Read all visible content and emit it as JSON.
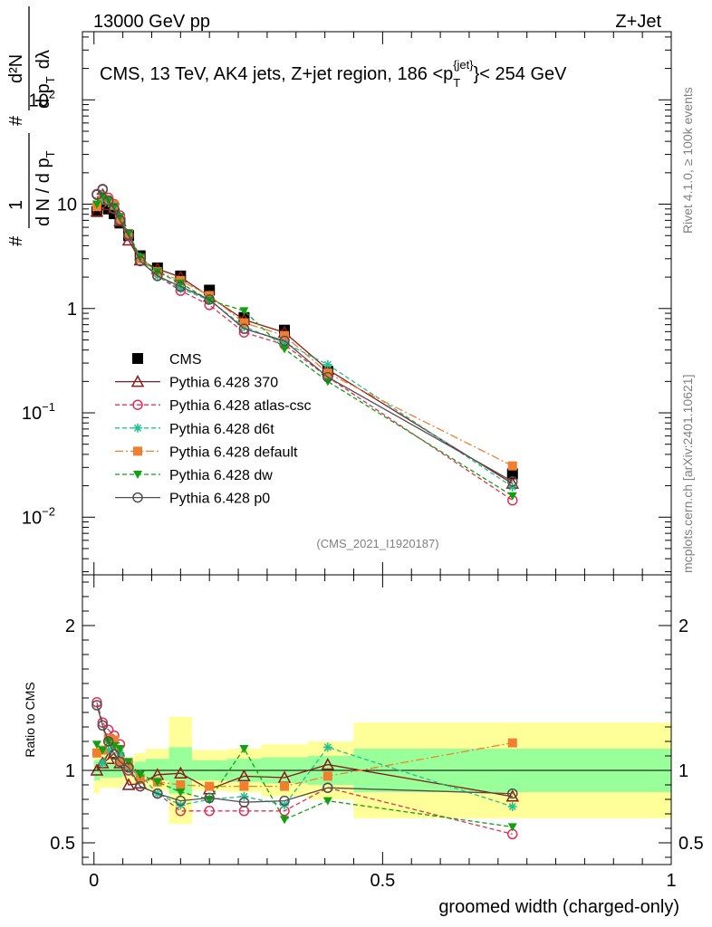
{
  "header": {
    "energy_label": "13000 GeV pp",
    "process_label": "Z+Jet"
  },
  "side_labels": {
    "rivet": "Rivet 4.1.0, ≥ 100k events",
    "mcplots": "mcplots.cern.ch [arXiv:2401.10621]"
  },
  "chart_data": [
    {
      "type": "line",
      "panel": "main",
      "title": "CMS, 13 TeV, AK4 jets, Z+jet region, 186 <p_T^{jet}> < 254 GeV",
      "title_parts": {
        "main": "CMS, 13 TeV, AK4 jets, Z+jet region, 186 <p",
        "sub": "T",
        "sup": "{jet}",
        "tail": "}< 254 GeV"
      },
      "ylabel": "1/(dN/dpT) d²N/(dpT dλ)",
      "ylabel_parts": {
        "hash": "#",
        "one": "1",
        "dN": "d N / d p",
        "dN_sub": "T",
        "d2N": "d²N",
        "dpdl": "d p",
        "dpdl_sub": "T",
        "dl": "dλ"
      },
      "yscale": "log",
      "ylim": [
        0.0028,
        450
      ],
      "xlim": [
        -0.02,
        1.0
      ],
      "yticks": [
        {
          "value": 0.01,
          "label_base": "10",
          "label_exp": "−2"
        },
        {
          "value": 0.1,
          "label_base": "10",
          "label_exp": "−1"
        },
        {
          "value": 1,
          "label_base": "1",
          "label_exp": ""
        },
        {
          "value": 10,
          "label_base": "10",
          "label_exp": ""
        },
        {
          "value": 100,
          "label_base": "10",
          "label_exp": "2"
        }
      ],
      "watermark": "(CMS_2021_I1920187)",
      "legend_position": "middle-left",
      "x": [
        0.005,
        0.015,
        0.025,
        0.035,
        0.045,
        0.06,
        0.08,
        0.11,
        0.15,
        0.2,
        0.26,
        0.33,
        0.405,
        0.725
      ],
      "series": [
        {
          "name": "CMS",
          "color": "#000000",
          "marker": "square",
          "dash": "",
          "line": false,
          "values": [
            8.5,
            10.5,
            9.0,
            8.1,
            6.6,
            5.0,
            3.2,
            2.45,
            2.05,
            1.5,
            0.82,
            0.62,
            0.25,
            0.026
          ]
        },
        {
          "name": "Pythia 6.428 370",
          "color": "#8b1a1a",
          "marker": "triangle-open",
          "dash": "",
          "line": true,
          "values": [
            8.5,
            11.0,
            9.8,
            9.2,
            6.9,
            4.5,
            2.9,
            2.4,
            2.0,
            1.3,
            0.78,
            0.59,
            0.26,
            0.021
          ]
        },
        {
          "name": "Pythia 6.428 atlas-csc",
          "color": "#e0305a",
          "marker": "circle-open",
          "dash": "5,3",
          "line": true,
          "values": [
            12.5,
            14.0,
            11.5,
            10.0,
            7.8,
            5.0,
            2.85,
            2.05,
            1.48,
            1.08,
            0.59,
            0.45,
            0.22,
            0.0145
          ]
        },
        {
          "name": "Pythia 6.428 d6t",
          "color": "#20c090",
          "marker": "asterisk",
          "dash": "5,3",
          "line": true,
          "values": [
            9.5,
            11.0,
            10.3,
            9.5,
            7.4,
            5.1,
            3.1,
            2.05,
            1.55,
            1.2,
            0.67,
            0.47,
            0.29,
            0.0195
          ]
        },
        {
          "name": "Pythia 6.428 default",
          "color": "#f08030",
          "marker": "square",
          "dash": "9,3,2,3",
          "line": true,
          "values": [
            9.5,
            12.0,
            11.0,
            9.8,
            7.0,
            5.2,
            3.0,
            2.25,
            1.85,
            1.33,
            0.73,
            0.55,
            0.24,
            0.031
          ]
        },
        {
          "name": "Pythia 6.428 dw",
          "color": "#10a010",
          "marker": "triangle-down",
          "dash": "5,3",
          "line": true,
          "values": [
            10.0,
            12.0,
            10.8,
            9.5,
            7.6,
            5.3,
            3.1,
            2.25,
            1.75,
            1.2,
            0.95,
            0.41,
            0.2,
            0.016
          ]
        },
        {
          "name": "Pythia 6.428 p0",
          "color": "#505050",
          "marker": "circle-open",
          "dash": "",
          "line": true,
          "values": [
            12.3,
            13.8,
            10.8,
            9.0,
            7.0,
            5.1,
            2.85,
            2.05,
            1.62,
            1.22,
            0.64,
            0.49,
            0.22,
            0.022
          ]
        }
      ]
    },
    {
      "type": "line",
      "panel": "ratio",
      "ylabel": "Ratio to CMS",
      "xlabel": "groomed width (charged-only)",
      "ylim": [
        0.35,
        2.35
      ],
      "xlim": [
        -0.02,
        1.0
      ],
      "yticks": [
        0.5,
        1,
        2
      ],
      "ytick_labels": [
        "0.5",
        "1",
        "2"
      ],
      "xticks": [
        0,
        0.5,
        1
      ],
      "xtick_labels": [
        "0",
        "0.5",
        "1"
      ],
      "bands": [
        {
          "x0": 0.0,
          "x1": 0.01,
          "y68": [
            0.93,
            1.07
          ],
          "y95": [
            0.84,
            1.16
          ]
        },
        {
          "x0": 0.01,
          "x1": 0.02,
          "y68": [
            0.95,
            1.05
          ],
          "y95": [
            0.88,
            1.12
          ]
        },
        {
          "x0": 0.02,
          "x1": 0.03,
          "y68": [
            0.95,
            1.05
          ],
          "y95": [
            0.88,
            1.12
          ]
        },
        {
          "x0": 0.03,
          "x1": 0.04,
          "y68": [
            0.95,
            1.05
          ],
          "y95": [
            0.88,
            1.12
          ]
        },
        {
          "x0": 0.04,
          "x1": 0.05,
          "y68": [
            0.95,
            1.05
          ],
          "y95": [
            0.88,
            1.12
          ]
        },
        {
          "x0": 0.05,
          "x1": 0.07,
          "y68": [
            0.96,
            1.04
          ],
          "y95": [
            0.91,
            1.09
          ]
        },
        {
          "x0": 0.07,
          "x1": 0.09,
          "y68": [
            0.95,
            1.06
          ],
          "y95": [
            0.9,
            1.12
          ]
        },
        {
          "x0": 0.09,
          "x1": 0.13,
          "y68": [
            0.93,
            1.08
          ],
          "y95": [
            0.86,
            1.15
          ]
        },
        {
          "x0": 0.13,
          "x1": 0.17,
          "y68": [
            0.84,
            1.16
          ],
          "y95": [
            0.63,
            1.37
          ]
        },
        {
          "x0": 0.17,
          "x1": 0.23,
          "y68": [
            0.93,
            1.07
          ],
          "y95": [
            0.86,
            1.14
          ]
        },
        {
          "x0": 0.23,
          "x1": 0.29,
          "y68": [
            0.92,
            1.08
          ],
          "y95": [
            0.85,
            1.15
          ]
        },
        {
          "x0": 0.29,
          "x1": 0.37,
          "y68": [
            0.91,
            1.09
          ],
          "y95": [
            0.82,
            1.18
          ]
        },
        {
          "x0": 0.37,
          "x1": 0.45,
          "y68": [
            0.9,
            1.1
          ],
          "y95": [
            0.8,
            1.2
          ]
        },
        {
          "x0": 0.45,
          "x1": 1.0,
          "y68": [
            0.85,
            1.15
          ],
          "y95": [
            0.67,
            1.33
          ]
        }
      ],
      "series": [
        {
          "name": "Pythia 6.428 370",
          "color": "#8b1a1a",
          "marker": "triangle-open",
          "dash": "",
          "values": [
            1.0,
            1.05,
            1.08,
            1.12,
            1.05,
            0.9,
            0.91,
            0.97,
            0.98,
            0.87,
            0.96,
            0.95,
            1.04,
            0.82
          ]
        },
        {
          "name": "Pythia 6.428 atlas-csc",
          "color": "#e0305a",
          "marker": "circle-open",
          "dash": "5,3",
          "values": [
            1.47,
            1.33,
            1.28,
            1.24,
            1.18,
            1.0,
            0.89,
            0.84,
            0.72,
            0.72,
            0.72,
            0.72,
            0.88,
            0.56
          ]
        },
        {
          "name": "Pythia 6.428 d6t",
          "color": "#20c090",
          "marker": "asterisk",
          "dash": "5,3",
          "values": [
            1.12,
            1.05,
            1.14,
            1.17,
            1.12,
            1.02,
            0.97,
            0.84,
            0.76,
            0.8,
            0.82,
            0.76,
            1.16,
            0.75
          ]
        },
        {
          "name": "Pythia 6.428 default",
          "color": "#f08030",
          "marker": "square",
          "dash": "9,3,2,3",
          "values": [
            1.12,
            1.14,
            1.22,
            1.21,
            1.06,
            1.04,
            0.94,
            0.92,
            0.9,
            0.89,
            0.89,
            0.89,
            0.96,
            1.19
          ]
        },
        {
          "name": "Pythia 6.428 dw",
          "color": "#10a010",
          "marker": "triangle-down",
          "dash": "5,3",
          "values": [
            1.18,
            1.14,
            1.2,
            1.17,
            1.15,
            1.06,
            0.97,
            0.92,
            0.85,
            0.8,
            1.15,
            0.66,
            0.79,
            0.61
          ]
        },
        {
          "name": "Pythia 6.428 p0",
          "color": "#505050",
          "marker": "circle-open",
          "dash": "",
          "values": [
            1.45,
            1.31,
            1.2,
            1.11,
            1.06,
            1.02,
            0.89,
            0.84,
            0.79,
            0.81,
            0.78,
            0.79,
            0.88,
            0.84
          ]
        }
      ]
    }
  ]
}
